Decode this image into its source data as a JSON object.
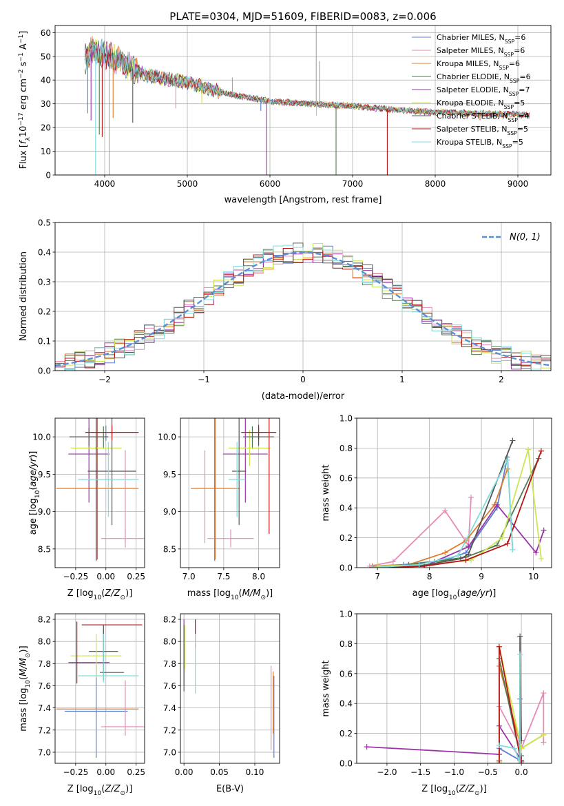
{
  "colors": {
    "Chabrier MILES": "#5b7fd0",
    "Salpeter MILES": "#e68ab8",
    "Kroupa MILES": "#e07b2a",
    "Chabrier ELODIE": "#4f7a4f",
    "Salpeter ELODIE": "#9a34a8",
    "Kroupa ELODIE": "#cbe650",
    "Chabrier STELIB": "#555555",
    "Salpeter STELIB": "#b41414",
    "Kroupa STELIB": "#7fdcdc",
    "normal": "#5a8fd6"
  },
  "chart_data": [
    {
      "id": "spectrum",
      "type": "line",
      "title": "PLATE=0304, MJD=51609, FIBERID=0083, z=0.006",
      "xlabel": "wavelength [Angstrom, rest frame]",
      "ylabel": "Flux [f_λ10^-17 erg cm^-2 s^-1 A^-1]",
      "xlim": [
        3400,
        9400
      ],
      "ylim": [
        0,
        63
      ],
      "xticks": [
        4000,
        5000,
        6000,
        7000,
        8000,
        9000
      ],
      "yticks": [
        0,
        10,
        20,
        30,
        40,
        50,
        60
      ],
      "legend_position": "upper-right",
      "series": [
        {
          "name": "Chabrier MILES",
          "nssp": "6"
        },
        {
          "name": "Salpeter MILES",
          "nssp": "6"
        },
        {
          "name": "Kroupa MILES",
          "nssp": "6"
        },
        {
          "name": "Chabrier ELODIE",
          "nssp": "6"
        },
        {
          "name": "Salpeter ELODIE",
          "nssp": "7"
        },
        {
          "name": "Kroupa ELODIE",
          "nssp": "5"
        },
        {
          "name": "Chabrier STELIB",
          "nssp": "4"
        },
        {
          "name": "Salpeter STELIB",
          "nssp": "5"
        },
        {
          "name": "Kroupa STELIB",
          "nssp": "5"
        }
      ],
      "continuum": {
        "x": [
          3750,
          3850,
          4000,
          4500,
          5000,
          5500,
          6000,
          6500,
          7000,
          7500,
          8000,
          8500,
          9000,
          9150
        ],
        "y": [
          48,
          53,
          51,
          42,
          39,
          34,
          31,
          30,
          29,
          27.5,
          26.5,
          26,
          25.5,
          25.2
        ]
      },
      "dips": [
        {
          "x": 3795,
          "y": 26
        },
        {
          "x": 3835,
          "y": 23
        },
        {
          "x": 3890,
          "y": 0
        },
        {
          "x": 3935,
          "y": 17
        },
        {
          "x": 3970,
          "y": 16
        },
        {
          "x": 4102,
          "y": 24
        },
        {
          "x": 4340,
          "y": 22
        },
        {
          "x": 4861,
          "y": 28
        },
        {
          "x": 5175,
          "y": 30
        },
        {
          "x": 5890,
          "y": 27
        },
        {
          "x": 5960,
          "y": 0
        },
        {
          "x": 6563,
          "y": 25
        },
        {
          "x": 6800,
          "y": 0
        },
        {
          "x": 7420,
          "y": 0
        },
        {
          "x": 8542,
          "y": 23
        },
        {
          "x": 8662,
          "y": 24
        }
      ],
      "spikes": [
        {
          "x": 4055,
          "y": 0
        },
        {
          "x": 5545,
          "y": 41
        },
        {
          "x": 6560,
          "y": 63
        },
        {
          "x": 6600,
          "y": 48
        }
      ]
    },
    {
      "id": "residuals",
      "type": "line",
      "xlabel": "(data-model)/error",
      "ylabel": "Normed distribution",
      "xlim": [
        -2.5,
        2.5
      ],
      "ylim": [
        0,
        0.5
      ],
      "xticks": [
        -2,
        -1,
        0,
        1,
        2
      ],
      "yticks": [
        0.0,
        0.1,
        0.2,
        0.3,
        0.4,
        0.5
      ],
      "legend_position": "upper-right",
      "legend": "N(0, 1)",
      "bin_width": 0.1
    },
    {
      "id": "age-vs-Z",
      "type": "scatter",
      "xlabel": "Z [log10(Z/Z⊙)]",
      "ylabel": "age [log10(age/yr)]",
      "xlim": [
        -0.42,
        0.32
      ],
      "ylim": [
        8.25,
        10.25
      ],
      "xticks": [
        -0.25,
        0.0,
        0.25
      ],
      "yticks": [
        8.5,
        9.0,
        9.5,
        10.0
      ],
      "points": [
        {
          "series": "Chabrier MILES",
          "x": -0.08,
          "xerr": 0.0,
          "y": 9.32,
          "yerr": 0.98
        },
        {
          "series": "Chabrier MILES",
          "x": 0.0,
          "xerr": 0.0,
          "y": 10.05,
          "yerr": 0.1
        },
        {
          "series": "Salpeter MILES",
          "x": 0.16,
          "xerr": 0.2,
          "y": 8.64,
          "yerr": 0.12
        },
        {
          "series": "Salpeter MILES",
          "x": 0.16,
          "xerr": 0.0,
          "y": 9.2,
          "yerr": 0.62
        },
        {
          "series": "Kroupa MILES",
          "x": -0.07,
          "xerr": 0.34,
          "y": 9.31,
          "yerr": 0.95
        },
        {
          "series": "Chabrier ELODIE",
          "x": -0.02,
          "xerr": 0.0,
          "y": 9.99,
          "yerr": 0.15
        },
        {
          "series": "Salpeter ELODIE",
          "x": -0.14,
          "xerr": 0.17,
          "y": 9.77,
          "yerr": 0.65
        },
        {
          "series": "Kroupa ELODIE",
          "x": -0.08,
          "xerr": 0.21,
          "y": 9.85,
          "yerr": 0.24
        },
        {
          "series": "Chabrier STELIB",
          "x": 0.05,
          "xerr": 0.2,
          "y": 9.54,
          "yerr": 0.72
        },
        {
          "series": "Chabrier STELIB",
          "x": -0.14,
          "xerr": 0.16,
          "y": 10.0,
          "yerr": 0.12
        },
        {
          "series": "Salpeter STELIB",
          "x": 0.05,
          "xerr": 0.22,
          "y": 10.06,
          "yerr": 0.1
        },
        {
          "series": "Salpeter STELIB",
          "x": -0.08,
          "xerr": 0.0,
          "y": 9.5,
          "yerr": 1.15
        },
        {
          "series": "Kroupa STELIB",
          "x": 0.02,
          "xerr": 0.25,
          "y": 9.43,
          "yerr": 0.5
        }
      ]
    },
    {
      "id": "age-vs-mass",
      "type": "scatter",
      "xlabel": "mass [log10(M/M⊙)]",
      "ylabel": "",
      "xlim": [
        6.88,
        8.3
      ],
      "ylim": [
        8.25,
        10.25
      ],
      "xticks": [
        7.0,
        7.5,
        8.0
      ],
      "yticks": [
        8.5,
        9.0,
        9.5,
        10.0
      ],
      "points": [
        {
          "series": "Chabrier MILES",
          "x": 7.37,
          "xerr": 0.0,
          "y": 9.32,
          "yerr": 0.98
        },
        {
          "series": "Salpeter MILES",
          "x": 7.23,
          "xerr": 0.0,
          "y": 9.2,
          "yerr": 0.62
        },
        {
          "series": "Salpeter MILES",
          "x": 7.6,
          "xerr": 0.33,
          "y": 8.64,
          "yerr": 0.12
        },
        {
          "series": "Kroupa MILES",
          "x": 7.38,
          "xerr": 0.35,
          "y": 9.31,
          "yerr": 0.95
        },
        {
          "series": "Chabrier ELODIE",
          "x": 7.91,
          "xerr": 0.0,
          "y": 9.99,
          "yerr": 0.15
        },
        {
          "series": "Salpeter ELODIE",
          "x": 7.81,
          "xerr": 0.32,
          "y": 9.77,
          "yerr": 0.65
        },
        {
          "series": "Kroupa ELODIE",
          "x": 7.87,
          "xerr": 0.3,
          "y": 9.85,
          "yerr": 0.24
        },
        {
          "series": "Chabrier STELIB",
          "x": 7.72,
          "xerr": 0.1,
          "y": 9.54,
          "yerr": 0.72
        },
        {
          "series": "Chabrier STELIB",
          "x": 8.0,
          "xerr": 0.22,
          "y": 10.0,
          "yerr": 0.12
        },
        {
          "series": "Salpeter STELIB",
          "x": 8.0,
          "xerr": 0.25,
          "y": 10.06,
          "yerr": 0.1
        },
        {
          "series": "Salpeter STELIB",
          "x": 8.15,
          "xerr": 0.0,
          "y": 9.5,
          "yerr": 0.8
        },
        {
          "series": "Kroupa STELIB",
          "x": 7.69,
          "xerr": 0.12,
          "y": 9.43,
          "yerr": 0.5
        }
      ]
    },
    {
      "id": "weight-vs-age",
      "type": "line",
      "xlabel": "age [log10(age/yr)]",
      "ylabel": "mass weight",
      "xlim": [
        6.6,
        10.35
      ],
      "ylim": [
        0,
        1.0
      ],
      "xticks": [
        7,
        8,
        9,
        10
      ],
      "yticks": [
        0.0,
        0.2,
        0.4,
        0.6,
        0.8,
        1.0
      ],
      "series": [
        {
          "name": "Chabrier MILES",
          "x": [
            6.9,
            7.5,
            8.3,
            8.7,
            9.3,
            9.5,
            9.6
          ],
          "y": [
            0.01,
            0.02,
            0.05,
            0.1,
            0.4,
            0.74,
            0.12
          ]
        },
        {
          "name": "Salpeter MILES",
          "x": [
            6.85,
            7.3,
            8.3,
            8.75,
            8.8
          ],
          "y": [
            0.01,
            0.04,
            0.38,
            0.15,
            0.47
          ]
        },
        {
          "name": "Kroupa MILES",
          "x": [
            6.9,
            7.6,
            8.3,
            8.7,
            9.25,
            9.5
          ],
          "y": [
            0.01,
            0.02,
            0.1,
            0.18,
            0.42,
            0.66
          ]
        },
        {
          "name": "Chabrier ELODIE",
          "x": [
            6.9,
            7.6,
            8.1,
            8.7,
            9.3,
            10.1
          ],
          "y": [
            0.0,
            0.02,
            0.04,
            0.07,
            0.15,
            0.73
          ]
        },
        {
          "name": "Salpeter ELODIE",
          "x": [
            6.9,
            7.9,
            8.75,
            9.3,
            10.05,
            10.2
          ],
          "y": [
            0.0,
            0.01,
            0.14,
            0.42,
            0.1,
            0.25
          ]
        },
        {
          "name": "Kroupa ELODIE",
          "x": [
            7.0,
            8.0,
            8.8,
            9.4,
            9.9,
            10.15
          ],
          "y": [
            0.01,
            0.02,
            0.05,
            0.2,
            0.79,
            0.06
          ]
        },
        {
          "name": "Chabrier STELIB",
          "x": [
            7.8,
            8.6,
            8.75,
            9.6
          ],
          "y": [
            0.01,
            0.06,
            0.09,
            0.85
          ]
        },
        {
          "name": "Salpeter STELIB",
          "x": [
            6.9,
            7.9,
            8.7,
            9.5,
            10.15
          ],
          "y": [
            0.0,
            0.01,
            0.05,
            0.16,
            0.78
          ]
        },
        {
          "name": "Kroupa STELIB",
          "x": [
            6.9,
            7.8,
            8.55,
            9.5,
            9.6
          ],
          "y": [
            0.0,
            0.02,
            0.08,
            0.72,
            0.12
          ]
        }
      ]
    },
    {
      "id": "mass-vs-Z",
      "type": "scatter",
      "xlabel": "Z [log10(Z/Z⊙)]",
      "ylabel": "mass [log10(M/M⊙)]",
      "xlim": [
        -0.42,
        0.32
      ],
      "ylim": [
        6.9,
        8.25
      ],
      "xticks": [
        -0.25,
        0.0,
        0.25
      ],
      "yticks": [
        7.0,
        7.2,
        7.4,
        7.6,
        7.8,
        8.0,
        8.2
      ],
      "points": [
        {
          "series": "Chabrier MILES",
          "x": -0.08,
          "xerr": 0.26,
          "y": 7.37,
          "yerr": 0.42
        },
        {
          "series": "Salpeter MILES",
          "x": 0.16,
          "xerr": 0.2,
          "y": 7.23,
          "yerr": 0.0
        },
        {
          "series": "Salpeter MILES",
          "x": 0.16,
          "xerr": 0.0,
          "y": 7.4,
          "yerr": 0.25
        },
        {
          "series": "Kroupa MILES",
          "x": -0.07,
          "xerr": 0.34,
          "y": 7.39,
          "yerr": 0.0
        },
        {
          "series": "Chabrier ELODIE",
          "x": -0.02,
          "xerr": 0.12,
          "y": 7.91,
          "yerr": 0.2
        },
        {
          "series": "Salpeter ELODIE",
          "x": -0.14,
          "xerr": 0.17,
          "y": 7.81,
          "yerr": 0.0
        },
        {
          "series": "Kroupa ELODIE",
          "x": -0.08,
          "xerr": 0.21,
          "y": 7.87,
          "yerr": 0.2
        },
        {
          "series": "Chabrier STELIB",
          "x": 0.05,
          "xerr": 0.1,
          "y": 7.72,
          "yerr": 0.0
        },
        {
          "series": "Chabrier STELIB",
          "x": -0.02,
          "xerr": 0.0,
          "y": 7.9,
          "yerr": 0.25
        },
        {
          "series": "Salpeter STELIB",
          "x": 0.05,
          "xerr": 0.25,
          "y": 8.15,
          "yerr": 0.0
        },
        {
          "series": "Salpeter STELIB",
          "x": -0.24,
          "xerr": 0.0,
          "y": 7.9,
          "yerr": 0.28
        },
        {
          "series": "Kroupa STELIB",
          "x": 0.02,
          "xerr": 0.25,
          "y": 7.69,
          "yerr": 0.0
        },
        {
          "series": "Kroupa STELIB",
          "x": -0.02,
          "xerr": 0.0,
          "y": 7.85,
          "yerr": 0.22
        }
      ]
    },
    {
      "id": "mass-vs-ebv",
      "type": "scatter",
      "xlabel": "E(B-V)",
      "ylabel": "",
      "xlim": [
        -0.005,
        0.135
      ],
      "ylim": [
        6.9,
        8.25
      ],
      "xticks": [
        0.0,
        0.05,
        0.1
      ],
      "yticks": [
        7.0,
        7.2,
        7.4,
        7.6,
        7.8,
        8.0,
        8.2
      ],
      "points": [
        {
          "series": "Chabrier MILES",
          "x": 0.127,
          "xerr": 0.0,
          "y": 7.32,
          "yerr": 0.37
        },
        {
          "series": "Salpeter MILES",
          "x": 0.123,
          "xerr": 0.0,
          "y": 7.4,
          "yerr": 0.38
        },
        {
          "series": "Kroupa MILES",
          "x": 0.126,
          "xerr": 0.0,
          "y": 7.45,
          "yerr": 0.28
        },
        {
          "series": "Chabrier ELODIE",
          "x": 0.0,
          "xerr": 0.0,
          "y": 7.95,
          "yerr": 0.18
        },
        {
          "series": "Salpeter ELODIE",
          "x": 0.0,
          "xerr": 0.0,
          "y": 7.9,
          "yerr": 0.3
        },
        {
          "series": "Kroupa ELODIE",
          "x": 0.001,
          "xerr": 0.0,
          "y": 7.95,
          "yerr": 0.2
        },
        {
          "series": "Chabrier STELIB",
          "x": 0.0,
          "xerr": 0.0,
          "y": 7.85,
          "yerr": 0.3
        },
        {
          "series": "Salpeter STELIB",
          "x": 0.016,
          "xerr": 0.0,
          "y": 8.07,
          "yerr": 0.13
        },
        {
          "series": "Kroupa STELIB",
          "x": 0.016,
          "xerr": 0.0,
          "y": 7.8,
          "yerr": 0.27
        }
      ]
    },
    {
      "id": "weight-vs-Z",
      "type": "line",
      "xlabel": "Z [log10(Z/Z⊙)]",
      "ylabel": "mass weight",
      "xlim": [
        -2.45,
        0.45
      ],
      "ylim": [
        0,
        1.0
      ],
      "xticks": [
        -2.0,
        -1.5,
        -1.0,
        -0.5,
        0.0
      ],
      "yticks": [
        0.0,
        0.2,
        0.4,
        0.6,
        0.8,
        1.0
      ],
      "series": [
        {
          "name": "Chabrier MILES",
          "x": [
            -0.33,
            -0.33,
            -0.02,
            -0.02
          ],
          "y": [
            0.02,
            0.1,
            0.02,
            0.43
          ]
        },
        {
          "name": "Salpeter MILES",
          "x": [
            -0.33,
            -0.33,
            0.0,
            0.33,
            0.33
          ],
          "y": [
            0.06,
            0.38,
            0.1,
            0.47,
            0.14
          ]
        },
        {
          "name": "Kroupa MILES",
          "x": [
            -0.33,
            -0.33,
            0.0,
            0.33
          ],
          "y": [
            0.02,
            0.65,
            0.1,
            0.19
          ]
        },
        {
          "name": "Chabrier ELODIE",
          "x": [
            -0.33,
            -0.33,
            0.0,
            0.0
          ],
          "y": [
            0.01,
            0.7,
            0.01,
            0.05
          ]
        },
        {
          "name": "Salpeter ELODIE",
          "x": [
            -2.3,
            -0.33,
            -0.33,
            0.0
          ],
          "y": [
            0.11,
            0.06,
            0.25,
            0.02
          ]
        },
        {
          "name": "Kroupa ELODIE",
          "x": [
            -0.33,
            -0.33,
            0.0,
            0.33
          ],
          "y": [
            0.01,
            0.78,
            0.1,
            0.19
          ]
        },
        {
          "name": "Chabrier STELIB",
          "x": [
            -0.02,
            -0.02,
            0.0
          ],
          "y": [
            0.0,
            0.85,
            0.15
          ]
        },
        {
          "name": "Salpeter STELIB",
          "x": [
            -0.33,
            -0.33,
            0.0
          ],
          "y": [
            0.0,
            0.78,
            0.0
          ]
        },
        {
          "name": "Kroupa STELIB",
          "x": [
            -0.33,
            -0.1,
            -0.02,
            -0.02
          ],
          "y": [
            0.12,
            0.1,
            0.0,
            0.73
          ]
        }
      ]
    }
  ]
}
